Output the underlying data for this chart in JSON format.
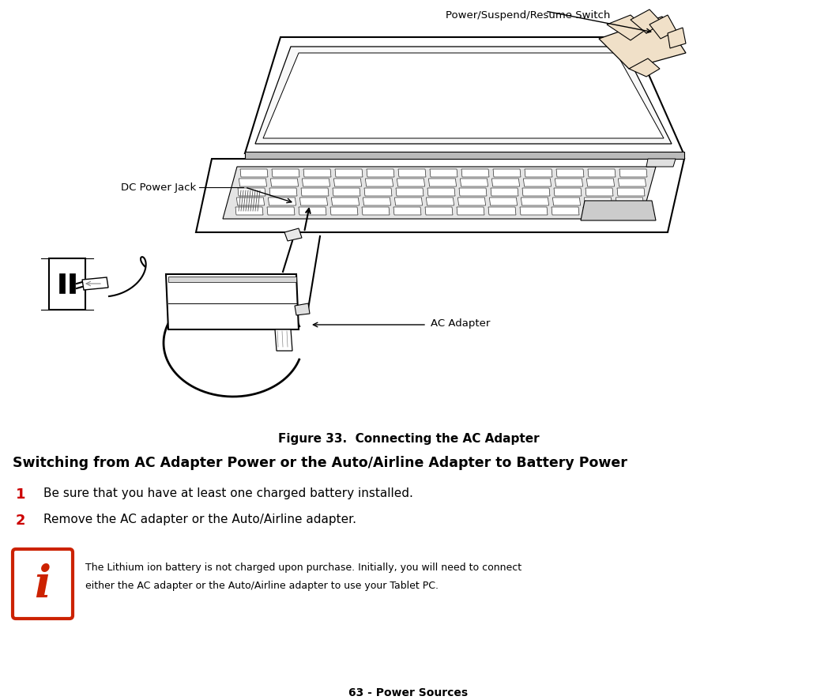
{
  "bg_color": "#ffffff",
  "fig_width": 10.34,
  "fig_height": 8.87,
  "title_figure": "Figure 33.  Connecting the AC Adapter",
  "section_heading": "Switching from AC Adapter Power or the Auto/Airline Adapter to Battery Power",
  "step1_num": "1",
  "step1_text": "Be sure that you have at least one charged battery installed.",
  "step2_num": "2",
  "step2_text": "Remove the AC adapter or the Auto/Airline adapter.",
  "note_line1": "The Lithium ion battery is not charged upon purchase. Initially, you will need to connect",
  "note_line2": "either the AC adapter or the Auto/Airline adapter to use your Tablet PC.",
  "footer": "63 - Power Sources",
  "label_power_switch": "Power/Suspend/Resume Switch",
  "label_dc_jack": "DC Power Jack",
  "label_ac_adapter": "AC Adapter",
  "note_icon_color": "#cc2200"
}
